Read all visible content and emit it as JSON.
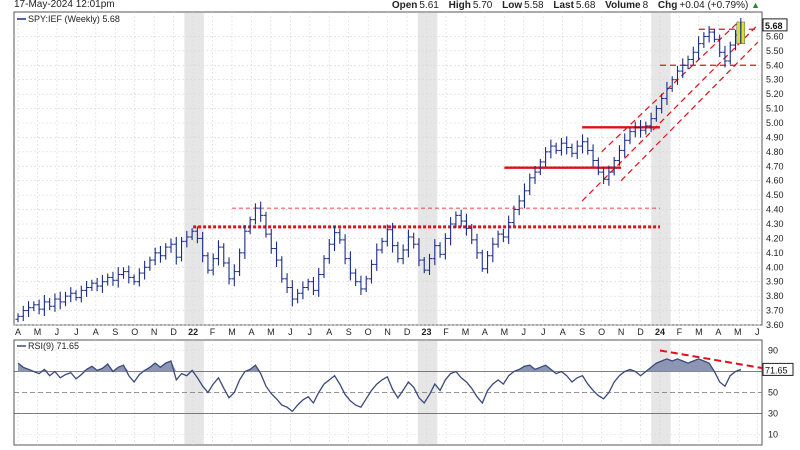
{
  "header": {
    "timestamp": "17-May-2024 12:01pm",
    "open_label": "Open",
    "open": "5.61",
    "high_label": "High",
    "high": "5.70",
    "low_label": "Low",
    "low": "5.58",
    "last_label": "Last",
    "last": "5.68",
    "volume_label": "Volume",
    "volume": "8",
    "chg_label": "Chg",
    "chg": "+0.04 (+0.79%)",
    "chg_arrow": "▲"
  },
  "price_panel": {
    "legend": "SPY:IEF (Weekly) 5.68",
    "last_badge": "5.68"
  },
  "rsi_panel": {
    "legend": "RSI(9) 71.65",
    "last_badge": "71.65"
  },
  "chart_data": [
    {
      "type": "line",
      "title": "SPY:IEF (Weekly) 5.68",
      "style": "ohlc-bars",
      "ylim": [
        3.6,
        5.7
      ],
      "y_ticks": [
        "3.60",
        "3.70",
        "3.80",
        "3.90",
        "4.00",
        "4.10",
        "4.20",
        "4.30",
        "4.40",
        "4.50",
        "4.60",
        "4.70",
        "4.80",
        "4.90",
        "5.00",
        "5.10",
        "5.20",
        "5.30",
        "5.40",
        "5.50",
        "5.60"
      ],
      "x_ticks": [
        "A",
        "M",
        "J",
        "J",
        "A",
        "S",
        "O",
        "N",
        "D",
        "22",
        "F",
        "M",
        "A",
        "M",
        "J",
        "J",
        "A",
        "S",
        "O",
        "N",
        "D",
        "23",
        "F",
        "M",
        "A",
        "M",
        "J",
        "J",
        "A",
        "S",
        "O",
        "N",
        "D",
        "24",
        "F",
        "M",
        "A",
        "M",
        "J"
      ],
      "series": [
        {
          "name": "SPY:IEF",
          "x_start": "2021-04",
          "close": [
            3.66,
            3.7,
            3.72,
            3.74,
            3.71,
            3.76,
            3.73,
            3.78,
            3.76,
            3.8,
            3.82,
            3.79,
            3.84,
            3.86,
            3.89,
            3.87,
            3.9,
            3.93,
            3.91,
            3.95,
            3.97,
            3.93,
            3.9,
            3.96,
            4.0,
            4.05,
            4.1,
            4.08,
            4.14,
            4.16,
            4.07,
            4.18,
            4.21,
            4.25,
            4.2,
            4.08,
            3.98,
            4.06,
            4.14,
            4.03,
            3.92,
            3.97,
            4.1,
            4.25,
            4.33,
            4.41,
            4.36,
            4.23,
            4.13,
            4.05,
            3.92,
            3.86,
            3.78,
            3.82,
            3.86,
            3.9,
            3.84,
            3.95,
            4.06,
            4.16,
            4.24,
            4.19,
            4.06,
            3.96,
            3.9,
            3.85,
            3.92,
            4.02,
            4.12,
            4.18,
            4.26,
            4.15,
            4.06,
            4.12,
            4.21,
            4.16,
            4.05,
            3.98,
            4.06,
            4.15,
            4.09,
            4.2,
            4.3,
            4.36,
            4.32,
            4.27,
            4.19,
            4.1,
            3.99,
            4.08,
            4.16,
            4.23,
            4.21,
            4.31,
            4.4,
            4.46,
            4.53,
            4.62,
            4.66,
            4.73,
            4.8,
            4.84,
            4.81,
            4.86,
            4.83,
            4.79,
            4.84,
            4.87,
            4.81,
            4.74,
            4.66,
            4.61,
            4.66,
            4.74,
            4.81,
            4.88,
            4.94,
            4.97,
            4.95,
            4.98,
            5.03,
            5.1,
            5.17,
            5.24,
            5.3,
            5.36,
            5.4,
            5.44,
            5.49,
            5.55,
            5.6,
            5.63,
            5.58,
            5.49,
            5.43,
            5.54,
            5.61,
            5.68
          ]
        }
      ],
      "annotations": [
        {
          "kind": "support-resistance",
          "style": "red-dotted",
          "y": 4.28,
          "x_from": "2022-01",
          "x_to": "2024-01"
        },
        {
          "kind": "support-resistance",
          "style": "red-dashed-thin",
          "y": 4.41,
          "x_from": "2022-03",
          "x_to": "2024-01"
        },
        {
          "kind": "support-resistance",
          "style": "red-solid",
          "y": 4.69,
          "x_from": "2023-05",
          "x_to": "2023-11"
        },
        {
          "kind": "support-resistance",
          "style": "red-solid",
          "y": 4.97,
          "x_from": "2023-09",
          "x_to": "2024-01"
        },
        {
          "kind": "support-resistance",
          "style": "red-dashed",
          "y": 5.4,
          "x_from": "2024-01",
          "x_to": "2024-06"
        },
        {
          "kind": "support-resistance",
          "style": "red-dashed",
          "y": 5.65,
          "x_from": "2024-03",
          "x_to": "2024-06"
        },
        {
          "kind": "trend-channel",
          "style": "red-dashed",
          "points": [
            [
              "2023-09",
              4.46
            ],
            [
              "2024-05",
              5.68
            ]
          ]
        },
        {
          "kind": "trend-channel",
          "style": "red-dashed",
          "points": [
            [
              "2023-11",
              4.6
            ],
            [
              "2024-05",
              5.56
            ]
          ]
        },
        {
          "kind": "trend-channel",
          "style": "red-dashed",
          "points": [
            [
              "2023-10",
              4.8
            ],
            [
              "2024-04",
              5.7
            ]
          ]
        }
      ]
    },
    {
      "type": "area",
      "title": "RSI(9) 71.65",
      "ylim": [
        0,
        100
      ],
      "y_ticks": [
        "10",
        "30",
        "50",
        "70",
        "90"
      ],
      "overbought": 70,
      "oversold": 30,
      "series": [
        {
          "name": "RSI(9)",
          "values": [
            78,
            74,
            72,
            70,
            68,
            72,
            66,
            70,
            64,
            67,
            69,
            63,
            67,
            72,
            75,
            71,
            73,
            77,
            70,
            74,
            76,
            66,
            60,
            67,
            71,
            74,
            78,
            74,
            78,
            80,
            62,
            68,
            66,
            71,
            64,
            56,
            50,
            58,
            64,
            54,
            45,
            50,
            62,
            70,
            72,
            76,
            68,
            56,
            49,
            44,
            38,
            36,
            32,
            38,
            43,
            46,
            40,
            50,
            58,
            62,
            66,
            58,
            48,
            42,
            38,
            36,
            44,
            52,
            58,
            62,
            65,
            53,
            45,
            52,
            60,
            55,
            45,
            40,
            48,
            58,
            52,
            62,
            68,
            70,
            64,
            60,
            54,
            46,
            40,
            52,
            58,
            62,
            58,
            66,
            70,
            72,
            75,
            76,
            72,
            74,
            76,
            72,
            68,
            70,
            66,
            60,
            64,
            66,
            58,
            52,
            47,
            44,
            50,
            60,
            66,
            70,
            72,
            70,
            66,
            70,
            74,
            78,
            80,
            82,
            80,
            82,
            80,
            78,
            80,
            82,
            80,
            78,
            70,
            60,
            56,
            66,
            70,
            72
          ]
        }
      ],
      "annotations": [
        {
          "kind": "divergence-line",
          "style": "red-dashed",
          "points": [
            [
              "2024-01",
              90
            ],
            [
              "2024-06",
              70
            ]
          ]
        }
      ]
    }
  ]
}
